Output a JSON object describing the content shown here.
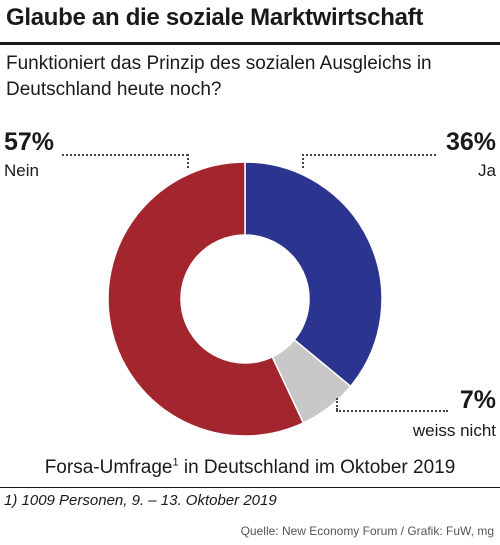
{
  "title": "Glaube an die soziale Marktwirtschaft",
  "subtitle": "Funktioniert das Prinzip des sozialen Ausgleichs in Deutschland heute noch?",
  "survey": {
    "text_before": "Forsa-Umfrage",
    "sup": "1",
    "text_after": " in Deutschland im Oktober 2019"
  },
  "footnote": "1) 1009 Personen, 9. – 13. Oktober 2019",
  "source": "Quelle: New Economy Forum / Grafik: FuW, mg",
  "labels": {
    "nein": {
      "pct": "57%",
      "name": "Nein"
    },
    "ja": {
      "pct": "36%",
      "name": "Ja"
    },
    "weiss": {
      "pct": "7%",
      "name": "weiss nicht"
    }
  },
  "colors": {
    "ja": "#2b3590",
    "weiss": "#c8c8c8",
    "nein": "#a3262f"
  },
  "chart_data": {
    "type": "pie",
    "donut": true,
    "slices": [
      {
        "label": "Ja",
        "value": 36,
        "color": "#2b3590"
      },
      {
        "label": "weiss nicht",
        "value": 7,
        "color": "#c8c8c8"
      },
      {
        "label": "Nein",
        "value": 57,
        "color": "#a3262f"
      }
    ],
    "start_angle_deg": 0,
    "direction": "clockwise"
  }
}
